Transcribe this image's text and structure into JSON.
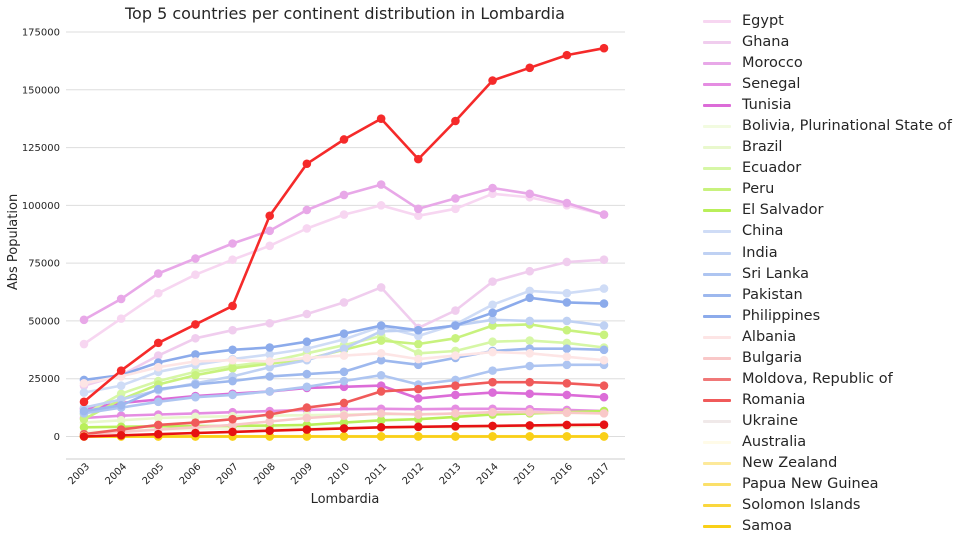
{
  "chart_data": {
    "type": "line",
    "title": "Top 5 countries per continent distribution in Lombardia",
    "xlabel": "Lombardia",
    "ylabel": "Abs Population",
    "ylim": [
      -10000,
      177000
    ],
    "yticks": [
      0,
      25000,
      50000,
      75000,
      100000,
      125000,
      150000,
      175000
    ],
    "grid": "horizontal",
    "legend_position": "right-outside",
    "x": [
      "2003",
      "2004",
      "2005",
      "2006",
      "2007",
      "2008",
      "2009",
      "2010",
      "2011",
      "2012",
      "2013",
      "2014",
      "2015",
      "2016",
      "2017"
    ],
    "series": [
      {
        "name": "Egypt",
        "color": "#f7d6f1",
        "values": [
          40000,
          51000,
          62000,
          70000,
          76500,
          82500,
          90000,
          96000,
          100000,
          95500,
          98500,
          105000,
          103500,
          100000,
          96000
        ]
      },
      {
        "name": "Ghana",
        "color": "#f0cdee",
        "values": [
          22000,
          26500,
          35000,
          42500,
          46000,
          49000,
          53000,
          58000,
          64500,
          47000,
          54500,
          67000,
          71500,
          75500,
          76500
        ]
      },
      {
        "name": "Morocco",
        "color": "#e8a8e8",
        "values": [
          50500,
          59500,
          70500,
          77000,
          83500,
          89000,
          98000,
          104500,
          109000,
          98500,
          103000,
          107500,
          105000,
          101000,
          96000
        ]
      },
      {
        "name": "Senegal",
        "color": "#e58de2",
        "values": [
          8000,
          9000,
          9500,
          10000,
          10500,
          11000,
          11500,
          11800,
          12000,
          11800,
          12000,
          12000,
          11800,
          11500,
          11000
        ]
      },
      {
        "name": "Tunisia",
        "color": "#dc6cd8",
        "values": [
          12000,
          14500,
          16000,
          17500,
          18500,
          19500,
          21000,
          21500,
          22000,
          16500,
          18000,
          19000,
          18500,
          18000,
          17000
        ]
      },
      {
        "name": "Bolivia, Plurinational State of",
        "color": "#f2fbe0",
        "values": [
          2000,
          2500,
          3000,
          3200,
          3400,
          3500,
          3600,
          3700,
          3800,
          3900,
          4000,
          4100,
          4200,
          4300,
          4400
        ]
      },
      {
        "name": "Brazil",
        "color": "#e9f8cd",
        "values": [
          6000,
          7000,
          8000,
          8500,
          8800,
          9000,
          9200,
          9500,
          9600,
          9700,
          9800,
          9900,
          10000,
          10200,
          10400
        ]
      },
      {
        "name": "Ecuador",
        "color": "#d6f7a6",
        "values": [
          9500,
          18500,
          24000,
          28000,
          30500,
          32500,
          36000,
          39500,
          43500,
          36000,
          37000,
          41000,
          41500,
          40500,
          38500
        ]
      },
      {
        "name": "Peru",
        "color": "#c8f27e",
        "values": [
          7500,
          16000,
          22500,
          26500,
          29500,
          31500,
          33500,
          37500,
          41500,
          40000,
          42500,
          48000,
          48500,
          46000,
          44000
        ]
      },
      {
        "name": "El Salvador",
        "color": "#b9ef5a",
        "values": [
          4000,
          4200,
          4400,
          4500,
          4600,
          4700,
          5000,
          6000,
          7000,
          7500,
          8500,
          9500,
          10000,
          10500,
          11000
        ]
      },
      {
        "name": "China",
        "color": "#cfdcf6",
        "values": [
          19000,
          22000,
          28000,
          31000,
          33500,
          35500,
          38000,
          42000,
          47500,
          43500,
          48500,
          57000,
          63000,
          62000,
          64000
        ]
      },
      {
        "name": "India",
        "color": "#bfd1f3",
        "values": [
          12500,
          16000,
          20000,
          23000,
          26000,
          30000,
          33000,
          38000,
          45500,
          46000,
          48000,
          50500,
          50000,
          50000,
          48000
        ]
      },
      {
        "name": "Sri Lanka",
        "color": "#aec5f1",
        "values": [
          10000,
          12500,
          15000,
          17000,
          18000,
          19500,
          21500,
          24000,
          26500,
          22500,
          24500,
          28500,
          30500,
          31000,
          31000
        ]
      },
      {
        "name": "Pakistan",
        "color": "#9db8ee",
        "values": [
          11000,
          13500,
          20500,
          22500,
          24000,
          26000,
          27000,
          28000,
          33000,
          31000,
          34000,
          37000,
          38000,
          38000,
          37500
        ]
      },
      {
        "name": "Philippines",
        "color": "#8cabeb",
        "values": [
          24500,
          26500,
          32000,
          35500,
          37500,
          38500,
          41000,
          44500,
          48000,
          46000,
          48000,
          53500,
          60000,
          58000,
          57500
        ]
      },
      {
        "name": "Albania",
        "color": "#fde5e5",
        "values": [
          23000,
          26000,
          30000,
          32500,
          33000,
          32500,
          34000,
          35000,
          36000,
          33500,
          35000,
          36500,
          36000,
          34500,
          33000
        ]
      },
      {
        "name": "Bulgaria",
        "color": "#f9c8c8",
        "values": [
          1000,
          2000,
          3000,
          4000,
          5000,
          6500,
          8000,
          9000,
          10000,
          9500,
          10000,
          10500,
          10500,
          10300,
          10000
        ]
      },
      {
        "name": "Moldova, Republic of",
        "color": "#f07878",
        "values": [
          0,
          500,
          1000,
          1500,
          2000,
          2500,
          3000,
          3500,
          4000,
          4200,
          4400,
          4600,
          4800,
          5000,
          5100
        ]
      },
      {
        "name": "Romania",
        "color": "#f05a5a",
        "values": [
          1000,
          3000,
          5000,
          6000,
          7500,
          9500,
          12500,
          14500,
          19500,
          20500,
          22000,
          23500,
          23500,
          23000,
          22000
        ]
      },
      {
        "name": "Ukraine",
        "color": "#f0e9e9",
        "values": [
          15000,
          28500,
          40500,
          48500,
          56500,
          95500,
          118000,
          128500,
          137500,
          120000,
          136500,
          154000,
          159500,
          165000,
          168000
        ]
      },
      {
        "name": "Australia",
        "color": "#fffbe8",
        "values": [
          200,
          200,
          200,
          200,
          200,
          200,
          200,
          200,
          200,
          200,
          200,
          200,
          200,
          200,
          200
        ]
      },
      {
        "name": "New Zealand",
        "color": "#fde99a",
        "values": [
          100,
          100,
          100,
          100,
          100,
          100,
          100,
          100,
          100,
          100,
          100,
          100,
          100,
          100,
          100
        ]
      },
      {
        "name": "Papua New Guinea",
        "color": "#fbe06a",
        "values": [
          50,
          50,
          50,
          50,
          50,
          50,
          50,
          50,
          50,
          50,
          50,
          50,
          50,
          50,
          50
        ]
      },
      {
        "name": "Solomon Islands",
        "color": "#fad73e",
        "values": [
          20,
          20,
          20,
          20,
          20,
          20,
          20,
          20,
          20,
          20,
          20,
          20,
          20,
          20,
          20
        ]
      },
      {
        "name": "Samoa",
        "color": "#f9d017",
        "values": [
          0,
          0,
          0,
          0,
          0,
          0,
          0,
          0,
          0,
          0,
          0,
          0,
          0,
          0,
          0
        ]
      }
    ]
  },
  "overlay_series": [
    {
      "name": "Ukraine",
      "draw_color": "#f52a2a"
    },
    {
      "name": "Moldova, Republic of",
      "draw_color": "#e61212"
    }
  ]
}
